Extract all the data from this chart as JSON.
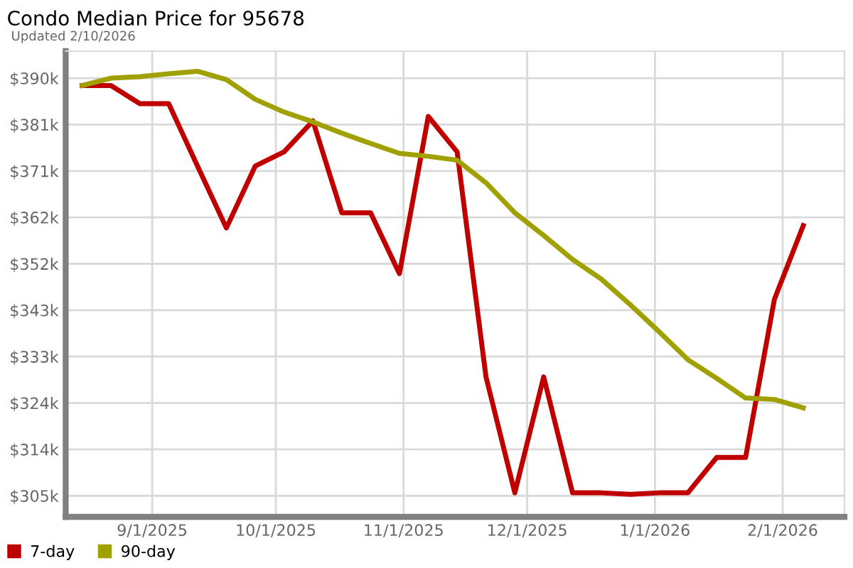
{
  "chart_data": {
    "type": "line",
    "title": "Condo Median Price for 95678",
    "subtitle": "Updated 2/10/2026",
    "x": [
      "2025-08-15",
      "2025-08-22",
      "2025-08-29",
      "2025-09-05",
      "2025-09-12",
      "2025-09-19",
      "2025-09-26",
      "2025-10-03",
      "2025-10-10",
      "2025-10-17",
      "2025-10-24",
      "2025-10-31",
      "2025-11-07",
      "2025-11-14",
      "2025-11-21",
      "2025-11-28",
      "2025-12-05",
      "2025-12-12",
      "2025-12-19",
      "2025-12-26",
      "2026-01-02",
      "2026-01-09",
      "2026-01-16",
      "2026-01-23",
      "2026-01-30",
      "2026-02-06"
    ],
    "series": [
      {
        "name": "7-day",
        "color": "#c00000",
        "values": [
          388.5,
          388.5,
          384.8,
          384.8,
          372.1,
          359.5,
          372.1,
          375.0,
          381.3,
          362.6,
          362.6,
          350.2,
          382.2,
          375.0,
          329.2,
          305.6,
          329.2,
          305.6,
          305.6,
          305.3,
          305.6,
          305.6,
          312.8,
          312.8,
          345.0,
          360.0
        ]
      },
      {
        "name": "90-day",
        "color": "#a0a000",
        "values": [
          388.5,
          390.0,
          390.3,
          390.9,
          391.4,
          389.7,
          385.7,
          383.1,
          381.1,
          378.8,
          376.7,
          374.7,
          374.1,
          373.3,
          368.7,
          362.6,
          358.0,
          353.1,
          349.1,
          343.9,
          338.4,
          332.7,
          328.9,
          324.9,
          324.6,
          322.9
        ]
      }
    ],
    "xlim": [
      "2025-08-11",
      "2026-02-16"
    ],
    "xticks": [
      {
        "value": "2025-09-01",
        "label": "9/1/2025"
      },
      {
        "value": "2025-10-01",
        "label": "10/1/2025"
      },
      {
        "value": "2025-11-01",
        "label": "11/1/2025"
      },
      {
        "value": "2025-12-01",
        "label": "12/1/2025"
      },
      {
        "value": "2026-01-01",
        "label": "1/1/2026"
      },
      {
        "value": "2026-02-01",
        "label": "2/1/2026"
      }
    ],
    "ylim": [
      300.7,
      395.5
    ],
    "yticks": [
      {
        "value": 305,
        "label": "$305k"
      },
      {
        "value": 314.44,
        "label": "$314k"
      },
      {
        "value": 323.89,
        "label": "$324k"
      },
      {
        "value": 333.33,
        "label": "$333k"
      },
      {
        "value": 342.78,
        "label": "$343k"
      },
      {
        "value": 352.22,
        "label": "$352k"
      },
      {
        "value": 361.67,
        "label": "$362k"
      },
      {
        "value": 371.11,
        "label": "$371k"
      },
      {
        "value": 380.56,
        "label": "$381k"
      },
      {
        "value": 390,
        "label": "$390k"
      }
    ],
    "grid": true,
    "legend": "bottom left",
    "marker": "none",
    "line_style": "solid"
  }
}
